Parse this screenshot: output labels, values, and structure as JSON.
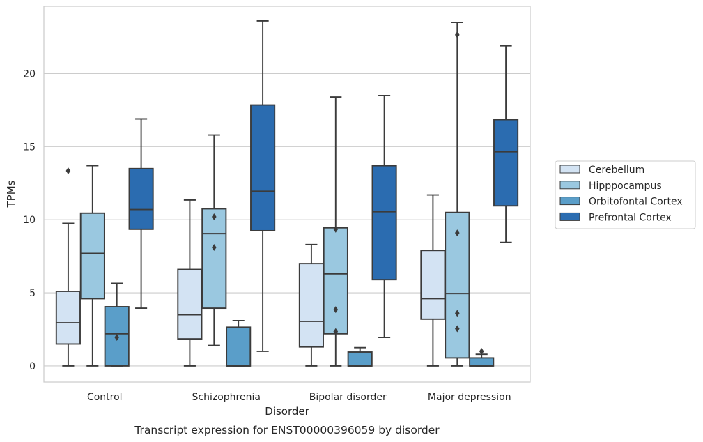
{
  "chart_data": {
    "type": "box",
    "caption": "Transcript expression for ENST00000396059 by disorder",
    "xlabel": "Disorder",
    "ylabel": "TPMs",
    "ylim": [
      -1.1,
      24.6
    ],
    "yticks": [
      0,
      5,
      10,
      15,
      20
    ],
    "grid": true,
    "legend_position": "right",
    "categories": [
      "Control",
      "Schizophrenia",
      "Bipolar disorder",
      "Major depression"
    ],
    "series": [
      {
        "name": "Cerebellum",
        "color": "#d3e3f3",
        "boxes": [
          {
            "whisker_low": 0,
            "q1": 1.5,
            "median": 2.95,
            "q3": 5.1,
            "whisker_high": 9.75,
            "outliers": [
              13.35
            ]
          },
          {
            "whisker_low": 0,
            "q1": 1.85,
            "median": 3.5,
            "q3": 6.6,
            "whisker_high": 11.35,
            "outliers": []
          },
          {
            "whisker_low": 0,
            "q1": 1.3,
            "median": 3.05,
            "q3": 7.0,
            "whisker_high": 8.3,
            "outliers": []
          },
          {
            "whisker_low": 0,
            "q1": 3.2,
            "median": 4.6,
            "q3": 7.9,
            "whisker_high": 11.7,
            "outliers": []
          }
        ]
      },
      {
        "name": "Hipppocampus",
        "color": "#9ac8e0",
        "boxes": [
          {
            "whisker_low": 0,
            "q1": 4.6,
            "median": 7.7,
            "q3": 10.45,
            "whisker_high": 13.7,
            "outliers": []
          },
          {
            "whisker_low": 1.4,
            "q1": 3.95,
            "median": 9.05,
            "q3": 10.75,
            "whisker_high": 15.8,
            "outliers": [
              10.2,
              8.1
            ]
          },
          {
            "whisker_low": 0,
            "q1": 2.2,
            "median": 6.3,
            "q3": 9.45,
            "whisker_high": 18.4,
            "outliers": [
              9.35,
              3.85,
              2.35
            ]
          },
          {
            "whisker_low": 0,
            "q1": 0.55,
            "median": 4.95,
            "q3": 10.5,
            "whisker_high": 23.5,
            "outliers": [
              22.65,
              9.1,
              3.6,
              2.55
            ]
          }
        ]
      },
      {
        "name": "Orbitofontal Cortex",
        "color": "#5a9ec9",
        "boxes": [
          {
            "whisker_low": 0,
            "q1": 0,
            "median": 2.2,
            "q3": 4.05,
            "whisker_high": 5.65,
            "outliers": [
              1.95
            ]
          },
          {
            "whisker_low": 0,
            "q1": 0,
            "median": 0,
            "q3": 2.65,
            "whisker_high": 3.1,
            "outliers": []
          },
          {
            "whisker_low": 0,
            "q1": 0,
            "median": 0,
            "q3": 0.95,
            "whisker_high": 1.25,
            "outliers": []
          },
          {
            "whisker_low": 0,
            "q1": 0,
            "median": 0,
            "q3": 0.55,
            "whisker_high": 0.8,
            "outliers": [
              1.0
            ]
          }
        ]
      },
      {
        "name": "Prefrontal Cortex",
        "color": "#2b6cb0",
        "boxes": [
          {
            "whisker_low": 3.95,
            "q1": 9.35,
            "median": 10.7,
            "q3": 13.5,
            "whisker_high": 16.9,
            "outliers": []
          },
          {
            "whisker_low": 1.0,
            "q1": 9.25,
            "median": 11.95,
            "q3": 17.85,
            "whisker_high": 23.6,
            "outliers": []
          },
          {
            "whisker_low": 1.95,
            "q1": 5.9,
            "median": 10.55,
            "q3": 13.7,
            "whisker_high": 18.5,
            "outliers": []
          },
          {
            "whisker_low": 8.45,
            "q1": 10.95,
            "median": 14.65,
            "q3": 16.85,
            "whisker_high": 21.9,
            "outliers": []
          }
        ]
      }
    ]
  }
}
